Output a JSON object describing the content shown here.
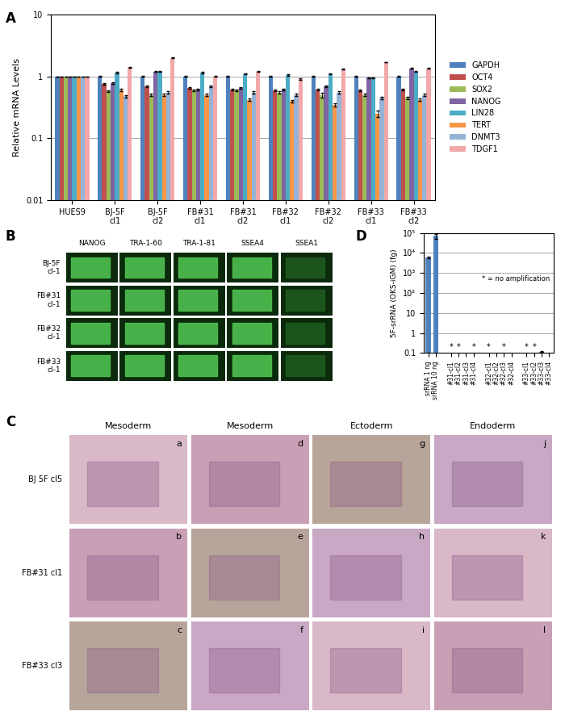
{
  "chart_data": [
    {
      "panel": "A",
      "type": "bar",
      "ylabel": "Relative mRNA Levels",
      "log": "y",
      "grid": true,
      "legend": "center left",
      "categories": [
        "HUES9",
        "BJ-5F cl1",
        "BJ-5F cl2",
        "FB#31 cl1",
        "FB#31 cl2",
        "FB#32 cl1",
        "FB#32 cl2",
        "FB#33 cl1",
        "FB#33 cl2"
      ],
      "ylim": [
        0.01,
        10
      ],
      "yticks": [
        0.01,
        0.1,
        1,
        10
      ],
      "series": [
        {
          "name": "GAPDH",
          "color": "#4f81bd",
          "values": [
            1,
            1,
            1,
            1,
            1,
            1,
            1,
            1,
            1
          ],
          "errors": [
            0,
            0.02,
            0.02,
            0.02,
            0.02,
            0.02,
            0.02,
            0.02,
            0.02
          ]
        },
        {
          "name": "OCT4",
          "color": "#c0504d",
          "values": [
            1,
            0.75,
            0.7,
            0.65,
            0.62,
            0.6,
            0.62,
            0.6,
            0.62
          ],
          "errors": [
            0,
            0.02,
            0.02,
            0.02,
            0.02,
            0.02,
            0.02,
            0.02,
            0.02
          ]
        },
        {
          "name": "SOX2",
          "color": "#9bbb59",
          "values": [
            1,
            0.58,
            0.5,
            0.6,
            0.6,
            0.55,
            0.5,
            0.5,
            0.45
          ],
          "errors": [
            0,
            0.02,
            0.02,
            0.02,
            0.02,
            0.02,
            0.04,
            0.02,
            0.02
          ]
        },
        {
          "name": "NANOG",
          "color": "#8064a2",
          "values": [
            1,
            0.78,
            1.2,
            0.62,
            0.65,
            0.62,
            0.7,
            0.95,
            1.35
          ],
          "errors": [
            0,
            0.02,
            0.02,
            0.02,
            0.02,
            0.02,
            0.02,
            0.02,
            0.02
          ]
        },
        {
          "name": "LIN28",
          "color": "#4bacc6",
          "values": [
            1,
            1.15,
            1.2,
            1.15,
            1.1,
            1.05,
            1.1,
            0.95,
            1.2
          ],
          "errors": [
            0,
            0.02,
            0.02,
            0.02,
            0.02,
            0.02,
            0.02,
            0.02,
            0.02
          ]
        },
        {
          "name": "TERT",
          "color": "#f79646",
          "values": [
            1,
            0.6,
            0.5,
            0.5,
            0.42,
            0.4,
            0.35,
            0.25,
            0.42
          ],
          "errors": [
            0,
            0.03,
            0.02,
            0.02,
            0.02,
            0.02,
            0.02,
            0.03,
            0.02
          ]
        },
        {
          "name": "DNMT3",
          "color": "#95b3d7",
          "values": [
            1,
            0.48,
            0.55,
            0.7,
            0.55,
            0.5,
            0.55,
            0.45,
            0.5
          ],
          "errors": [
            0,
            0.02,
            0.02,
            0.02,
            0.02,
            0.02,
            0.02,
            0.02,
            0.02
          ]
        },
        {
          "name": "TDGF1",
          "color": "#f2a8a8",
          "values": [
            1,
            1.4,
            2.0,
            1.0,
            1.2,
            0.9,
            1.3,
            1.7,
            1.35
          ],
          "errors": [
            0,
            0.03,
            0.02,
            0.02,
            0.02,
            0.02,
            0.02,
            0.02,
            0.02
          ]
        }
      ]
    },
    {
      "panel": "D",
      "type": "bar",
      "ylabel": "5F-srRNA (OKS-iGM) (fg)",
      "log": "y",
      "grid": true,
      "color": "#4f81bd",
      "annotation": "* = no amplification",
      "categories": [
        "srRNA 1 ng",
        "srRNA 10 ng",
        null,
        "#31-cl1",
        "#31-cl2",
        "#31-cl3",
        "#31-cl4",
        null,
        "#32-cl1",
        "#32-cl2",
        "#32-cl3",
        "#32-cl4",
        null,
        "#33-cl1",
        "#33-cl2",
        "#33-cl3",
        "#33-cl4"
      ],
      "values": [
        6000,
        70000,
        null,
        null,
        null,
        null,
        null,
        null,
        null,
        null,
        null,
        null,
        null,
        null,
        null,
        0.12,
        null
      ],
      "errors": [
        400,
        20000,
        null,
        null,
        null,
        null,
        null,
        null,
        null,
        null,
        null,
        null,
        null,
        null,
        null,
        0.01,
        null
      ],
      "flags": [
        null,
        null,
        null,
        "*",
        "*",
        null,
        "*",
        null,
        "*",
        null,
        "*",
        null,
        null,
        "*",
        "*",
        null,
        null
      ],
      "ylim": [
        0.1,
        100000
      ],
      "yticks": [
        0.1,
        1,
        10,
        {
          "value": 100,
          "label": "10²"
        },
        {
          "value": 1000,
          "label": "10³"
        },
        {
          "value": 10000,
          "label": "10⁴"
        },
        {
          "value": 100000,
          "label": "10⁵"
        }
      ]
    }
  ],
  "image_panels": [
    {
      "panel": "B",
      "columns": [
        "NANOG",
        "TRA-1-60",
        "TRA-1-81",
        "SSEA4",
        "SSEA1"
      ],
      "rows": [
        "BJ-5F cl-1",
        "FB#31 cl-1",
        "FB#32 cl-1",
        "FB#33 cl-1"
      ]
    },
    {
      "panel": "C",
      "columns": [
        "Mesoderm",
        "Mesoderm",
        "Ectoderm",
        "Endoderm"
      ],
      "rows": [
        "BJ 5F cl5",
        "FB#31 cl1",
        "FB#33 cl3"
      ],
      "cells": [
        [
          "a",
          "d",
          "g",
          "j"
        ],
        [
          "b",
          "e",
          "h",
          "k"
        ],
        [
          "c",
          "f",
          "i",
          "l"
        ]
      ]
    }
  ]
}
